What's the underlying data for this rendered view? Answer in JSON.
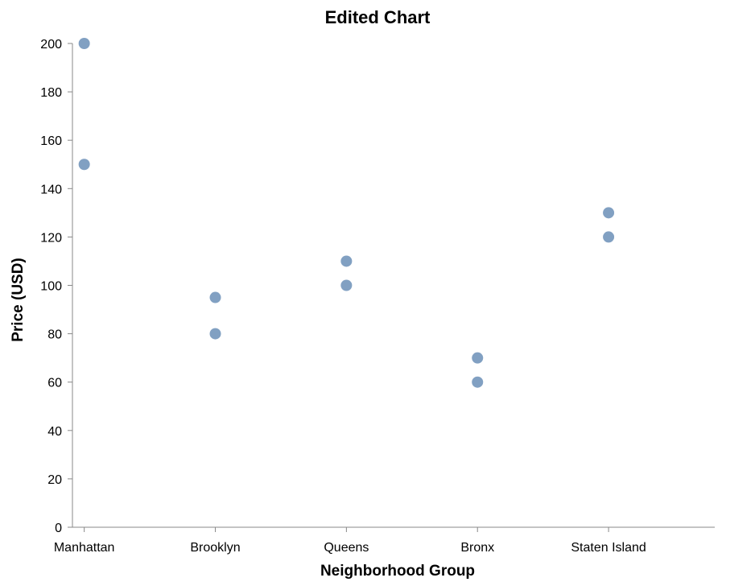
{
  "chart_data": {
    "type": "scatter",
    "title": "Edited Chart",
    "xlabel": "Neighborhood Group",
    "ylabel": "Price (USD)",
    "categories": [
      "Manhattan",
      "Brooklyn",
      "Queens",
      "Bronx",
      "Staten Island"
    ],
    "ylim": [
      0,
      200
    ],
    "yticks": [
      0,
      20,
      40,
      60,
      80,
      100,
      120,
      140,
      160,
      180,
      200
    ],
    "grid": false,
    "points": [
      {
        "x": "Manhattan",
        "y": 200
      },
      {
        "x": "Manhattan",
        "y": 150
      },
      {
        "x": "Brooklyn",
        "y": 95
      },
      {
        "x": "Brooklyn",
        "y": 80
      },
      {
        "x": "Queens",
        "y": 110
      },
      {
        "x": "Queens",
        "y": 100
      },
      {
        "x": "Bronx",
        "y": 70
      },
      {
        "x": "Bronx",
        "y": 60
      },
      {
        "x": "Staten Island",
        "y": 130
      },
      {
        "x": "Staten Island",
        "y": 120
      }
    ],
    "colors": {
      "point": "#4c78a8",
      "axis": "#888888",
      "text": "#000000"
    }
  }
}
